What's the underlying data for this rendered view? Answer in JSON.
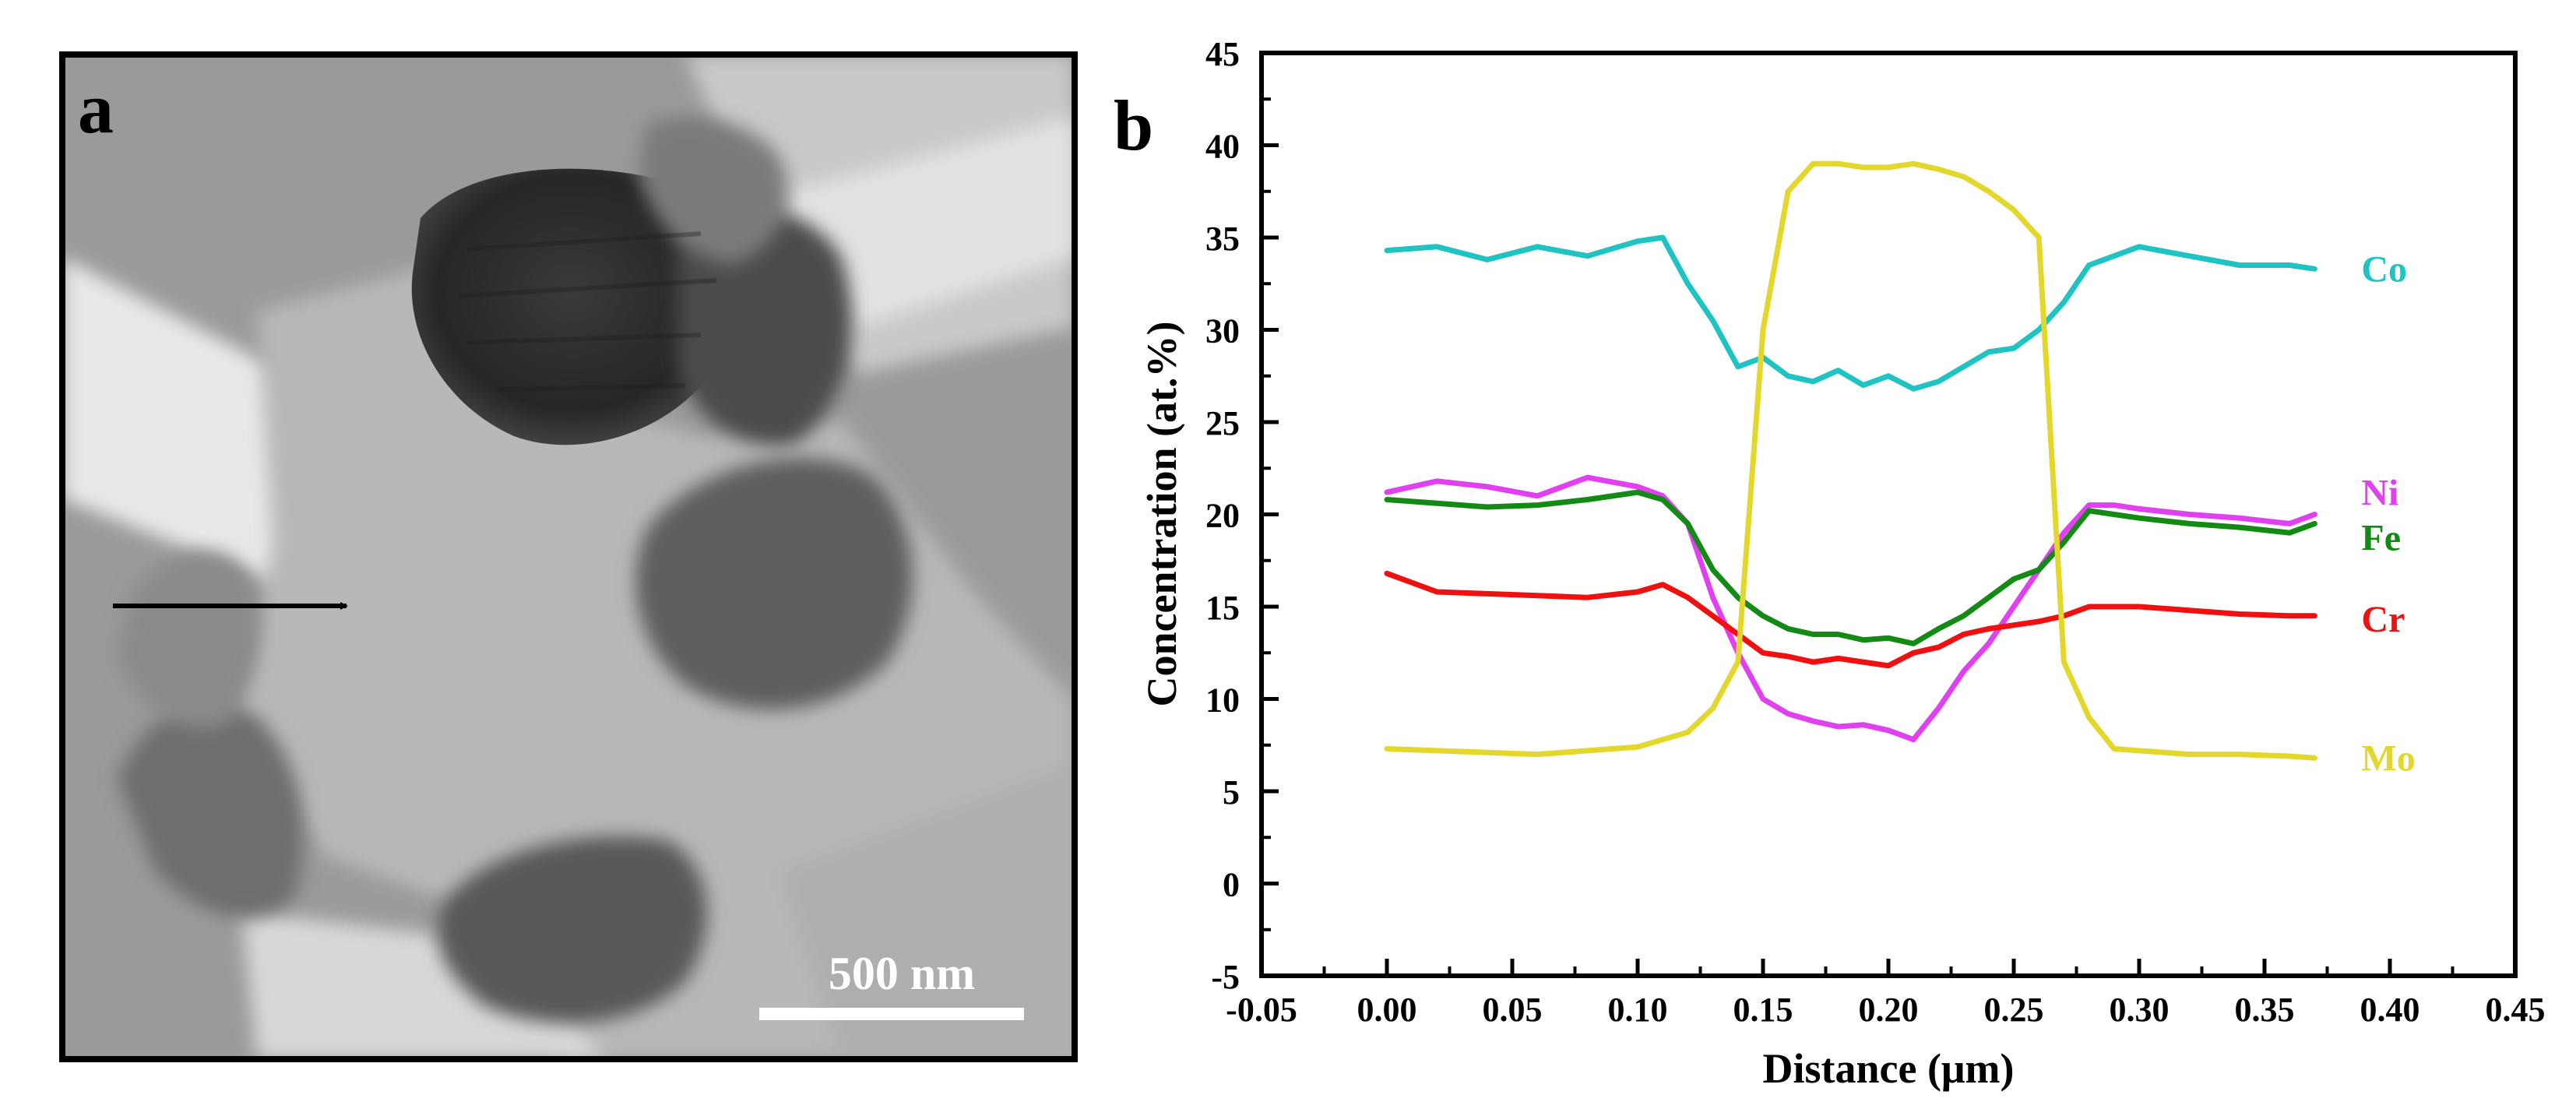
{
  "panel_a": {
    "label": "a",
    "scale_bar_label": "500 nm"
  },
  "panel_b": {
    "label": "b"
  },
  "colors": {
    "Co": "#1fc3c3",
    "Ni": "#e040f0",
    "Fe": "#138a13",
    "Cr": "#f01010",
    "Mo": "#e3d72c"
  },
  "chart_data": {
    "type": "line",
    "title": "",
    "xlabel": "Distance (μm)",
    "ylabel": "Concentration (at.%)",
    "xlim": [
      -0.05,
      0.45
    ],
    "ylim": [
      -5,
      45
    ],
    "xticks": [
      -0.05,
      0.0,
      0.05,
      0.1,
      0.15,
      0.2,
      0.25,
      0.3,
      0.35,
      0.4,
      0.45
    ],
    "yticks": [
      -5,
      0,
      5,
      10,
      15,
      20,
      25,
      30,
      35,
      40,
      45
    ],
    "xtick_labels": [
      "-0.05",
      "0.00",
      "0.05",
      "0.10",
      "0.15",
      "0.20",
      "0.25",
      "0.30",
      "0.35",
      "0.40",
      "0.45"
    ],
    "ytick_labels": [
      "-5",
      "0",
      "5",
      "10",
      "15",
      "20",
      "25",
      "30",
      "35",
      "40",
      "45"
    ],
    "grid": false,
    "legend": "inline labels at right end of each series",
    "x": [
      0.0,
      0.02,
      0.04,
      0.06,
      0.08,
      0.1,
      0.11,
      0.12,
      0.13,
      0.14,
      0.15,
      0.16,
      0.17,
      0.18,
      0.19,
      0.2,
      0.21,
      0.22,
      0.23,
      0.24,
      0.25,
      0.26,
      0.27,
      0.28,
      0.29,
      0.3,
      0.32,
      0.34,
      0.36,
      0.37
    ],
    "series": [
      {
        "name": "Co",
        "values": [
          34.3,
          34.5,
          33.8,
          34.5,
          34.0,
          34.8,
          35.0,
          32.5,
          30.5,
          28.0,
          28.5,
          27.5,
          27.2,
          27.8,
          27.0,
          27.5,
          26.8,
          27.2,
          28.0,
          28.8,
          29.0,
          30.0,
          31.5,
          33.5,
          34.0,
          34.5,
          34.0,
          33.5,
          33.5,
          33.3
        ]
      },
      {
        "name": "Ni",
        "values": [
          21.2,
          21.8,
          21.5,
          21.0,
          22.0,
          21.5,
          21.0,
          19.5,
          15.5,
          12.5,
          10.0,
          9.2,
          8.8,
          8.5,
          8.6,
          8.3,
          7.8,
          9.5,
          11.5,
          13.0,
          15.0,
          17.0,
          19.0,
          20.5,
          20.5,
          20.3,
          20.0,
          19.8,
          19.5,
          20.0
        ]
      },
      {
        "name": "Fe",
        "values": [
          20.8,
          20.6,
          20.4,
          20.5,
          20.8,
          21.2,
          20.8,
          19.5,
          17.0,
          15.5,
          14.5,
          13.8,
          13.5,
          13.5,
          13.2,
          13.3,
          13.0,
          13.8,
          14.5,
          15.5,
          16.5,
          17.0,
          18.5,
          20.2,
          20.0,
          19.8,
          19.5,
          19.3,
          19.0,
          19.5
        ]
      },
      {
        "name": "Cr",
        "values": [
          16.8,
          15.8,
          15.7,
          15.6,
          15.5,
          15.8,
          16.2,
          15.5,
          14.5,
          13.5,
          12.5,
          12.3,
          12.0,
          12.2,
          12.0,
          11.8,
          12.5,
          12.8,
          13.5,
          13.8,
          14.0,
          14.2,
          14.5,
          15.0,
          15.0,
          15.0,
          14.8,
          14.6,
          14.5,
          14.5
        ]
      },
      {
        "name": "Mo",
        "values": [
          7.3,
          7.2,
          7.1,
          7.0,
          7.2,
          7.4,
          7.8,
          8.2,
          9.5,
          12.0,
          30.0,
          37.5,
          39.0,
          39.0,
          38.8,
          38.8,
          39.0,
          38.7,
          38.3,
          37.5,
          36.5,
          35.0,
          12.0,
          9.0,
          7.3,
          7.2,
          7.0,
          7.0,
          6.9,
          6.8
        ]
      }
    ]
  }
}
